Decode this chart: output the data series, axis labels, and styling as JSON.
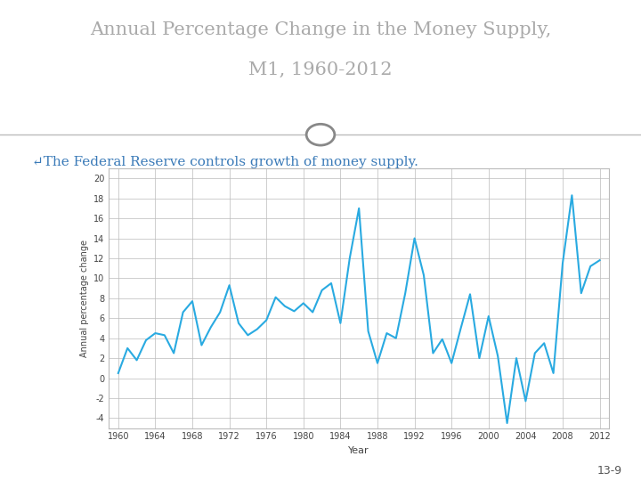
{
  "title_line1": "Annual Percentage Change in the Money Supply,",
  "title_line2": "M1, 1960-2012",
  "subtitle": "↵The Federal Reserve controls growth of money supply.",
  "ylabel": "Annual percentage change",
  "xlabel": "Year",
  "bg_color_top": "#ffffff",
  "bg_color_bottom": "#cce0f0",
  "line_color": "#29aae1",
  "title_color": "#aaaaaa",
  "subtitle_color": "#3a7ab8",
  "years": [
    1960,
    1961,
    1962,
    1963,
    1964,
    1965,
    1966,
    1967,
    1968,
    1969,
    1970,
    1971,
    1972,
    1973,
    1974,
    1975,
    1976,
    1977,
    1978,
    1979,
    1980,
    1981,
    1982,
    1983,
    1984,
    1985,
    1986,
    1987,
    1988,
    1989,
    1990,
    1991,
    1992,
    1993,
    1994,
    1995,
    1996,
    1997,
    1998,
    1999,
    2000,
    2001,
    2002,
    2003,
    2004,
    2005,
    2006,
    2007,
    2008,
    2009,
    2010,
    2011,
    2012
  ],
  "values": [
    0.5,
    3.0,
    1.8,
    3.8,
    4.5,
    4.3,
    2.5,
    6.6,
    7.7,
    3.3,
    5.1,
    6.6,
    9.3,
    5.5,
    4.3,
    4.9,
    5.8,
    8.1,
    7.2,
    6.7,
    7.5,
    6.6,
    8.8,
    9.5,
    5.5,
    12.0,
    17.0,
    4.7,
    1.5,
    4.5,
    4.0,
    8.5,
    14.0,
    10.3,
    2.5,
    3.9,
    1.5,
    5.0,
    8.4,
    2.0,
    6.2,
    2.2,
    -4.5,
    2.0,
    -2.3,
    2.5,
    3.5,
    0.5,
    11.5,
    18.3,
    8.5,
    11.2,
    11.8
  ],
  "ylim": [
    -5,
    21
  ],
  "yticks": [
    -4,
    -2,
    0,
    2,
    4,
    6,
    8,
    10,
    12,
    14,
    16,
    18,
    20
  ],
  "xticks": [
    1960,
    1964,
    1968,
    1972,
    1976,
    1980,
    1984,
    1988,
    1992,
    1996,
    2000,
    2004,
    2008,
    2012
  ],
  "grid_color": "#bbbbbb",
  "page_number": "13-9",
  "separator_color": "#bbbbbb",
  "circle_color": "#888888"
}
